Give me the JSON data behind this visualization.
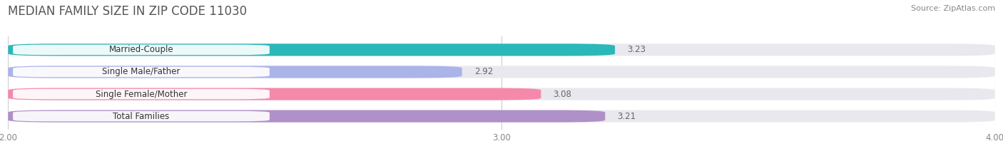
{
  "title": "MEDIAN FAMILY SIZE IN ZIP CODE 11030",
  "source": "Source: ZipAtlas.com",
  "categories": [
    "Married-Couple",
    "Single Male/Father",
    "Single Female/Mother",
    "Total Families"
  ],
  "values": [
    3.23,
    2.92,
    3.08,
    3.21
  ],
  "bar_colors": [
    "#2ab8b8",
    "#aab4e8",
    "#f589aa",
    "#b090c8"
  ],
  "xlim": [
    2.0,
    4.0
  ],
  "xticks": [
    2.0,
    3.0,
    4.0
  ],
  "xtick_labels": [
    "2.00",
    "3.00",
    "4.00"
  ],
  "background_color": "#ffffff",
  "bar_bg_color": "#e8e8ee",
  "title_fontsize": 12,
  "label_fontsize": 8.5,
  "value_fontsize": 8.5,
  "source_fontsize": 8
}
